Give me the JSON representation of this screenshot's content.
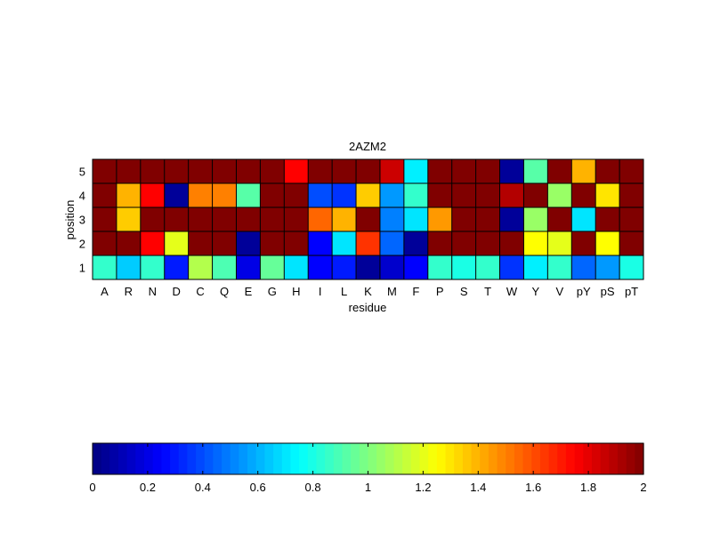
{
  "chart_data": {
    "type": "heatmap",
    "title": "2AZM2",
    "xlabel": "residue",
    "ylabel": "position",
    "x_categories": [
      "A",
      "R",
      "N",
      "D",
      "C",
      "Q",
      "E",
      "G",
      "H",
      "I",
      "L",
      "K",
      "M",
      "F",
      "P",
      "S",
      "T",
      "W",
      "Y",
      "V",
      "pY",
      "pS",
      "pT"
    ],
    "y_categories": [
      "5",
      "4",
      "3",
      "2",
      "1"
    ],
    "values": [
      [
        2.0,
        2.0,
        2.0,
        2.0,
        2.0,
        2.0,
        2.0,
        2.0,
        1.75,
        2.0,
        2.0,
        2.0,
        1.85,
        0.72,
        2.0,
        2.0,
        2.0,
        0.05,
        0.92,
        2.0,
        1.4,
        2.0,
        2.0
      ],
      [
        2.0,
        1.4,
        1.75,
        0.05,
        1.5,
        1.5,
        0.92,
        2.0,
        2.0,
        0.4,
        0.35,
        1.35,
        0.55,
        0.85,
        2.0,
        2.0,
        2.0,
        1.9,
        2.0,
        1.05,
        2.0,
        1.3,
        2.0
      ],
      [
        2.0,
        1.35,
        2.0,
        2.0,
        2.0,
        2.0,
        2.0,
        2.0,
        2.0,
        1.55,
        1.4,
        2.0,
        0.5,
        0.7,
        1.45,
        2.0,
        2.0,
        0.05,
        1.05,
        2.0,
        0.7,
        2.0,
        2.0
      ],
      [
        2.0,
        2.0,
        1.75,
        1.2,
        2.0,
        2.0,
        0.05,
        2.0,
        2.0,
        0.25,
        0.7,
        1.65,
        0.45,
        0.05,
        2.0,
        2.0,
        2.0,
        2.0,
        1.25,
        1.2,
        2.0,
        1.25,
        2.0
      ],
      [
        0.85,
        0.65,
        0.85,
        0.3,
        1.1,
        0.9,
        0.2,
        0.95,
        0.7,
        0.25,
        0.3,
        0.05,
        0.15,
        0.25,
        0.85,
        0.8,
        0.85,
        0.35,
        0.72,
        0.85,
        0.45,
        0.55,
        0.8
      ]
    ],
    "colormap": "jet",
    "colorbar": {
      "min": 0,
      "max": 2,
      "tick_labels": [
        "0",
        "0.2",
        "0.4",
        "0.6",
        "0.8",
        "1",
        "1.2",
        "1.4",
        "1.6",
        "1.8",
        "2"
      ]
    },
    "grid": false,
    "gap_color": "#000000"
  }
}
